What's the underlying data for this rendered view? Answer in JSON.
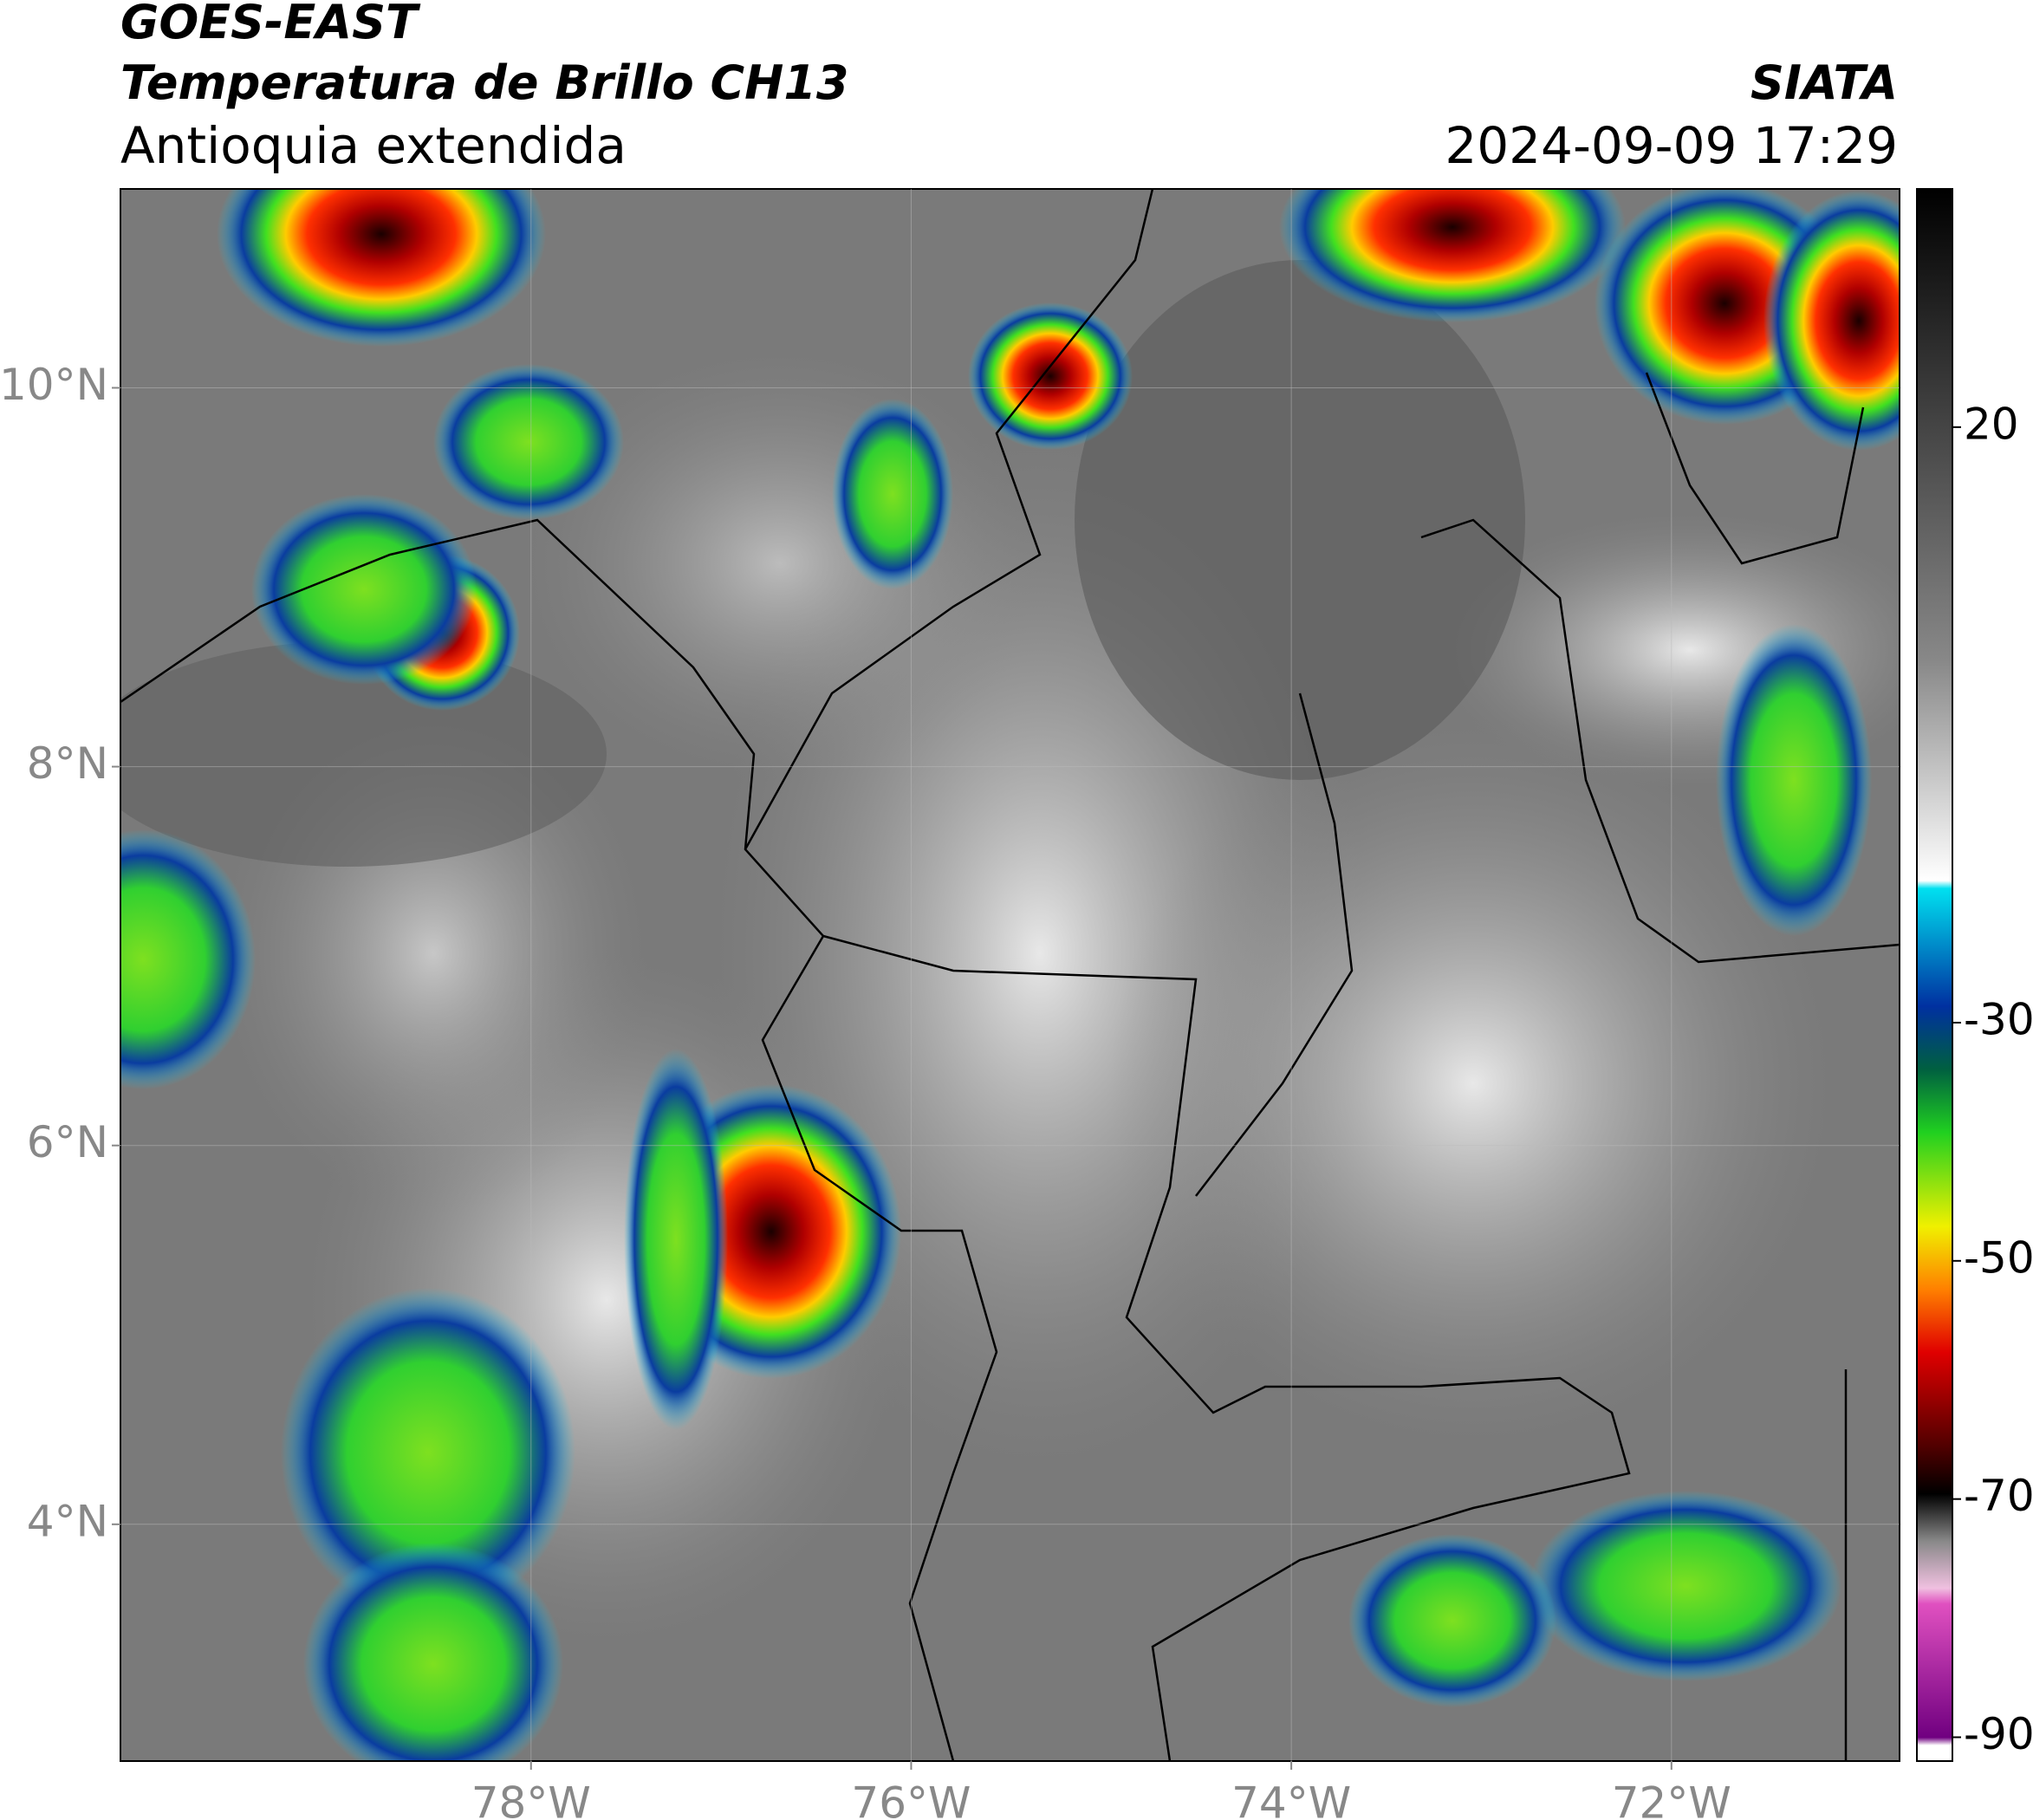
{
  "header": {
    "satellite": "GOES-EAST",
    "product": "Temperatura de Brillo CH13",
    "region": "Antioquia extendida",
    "source": "SIATA",
    "timestamp": "2024-09-09 17:29"
  },
  "chart_data": {
    "type": "map",
    "xlim": [
      -80.16,
      -70.8
    ],
    "ylim": [
      2.75,
      11.05
    ],
    "xticks": [
      {
        "value": -78,
        "label": "78°W"
      },
      {
        "value": -76,
        "label": "76°W"
      },
      {
        "value": -74,
        "label": "74°W"
      },
      {
        "value": -72,
        "label": "72°W"
      }
    ],
    "yticks": [
      {
        "value": 10,
        "label": "10°N"
      },
      {
        "value": 8,
        "label": "8°N"
      },
      {
        "value": 6,
        "label": "6°N"
      },
      {
        "value": 4,
        "label": "4°N"
      }
    ],
    "grid": true,
    "colorbar": {
      "lim": [
        -92,
        40
      ],
      "ticks": [
        20,
        -30,
        -50,
        -70,
        -90
      ]
    }
  }
}
